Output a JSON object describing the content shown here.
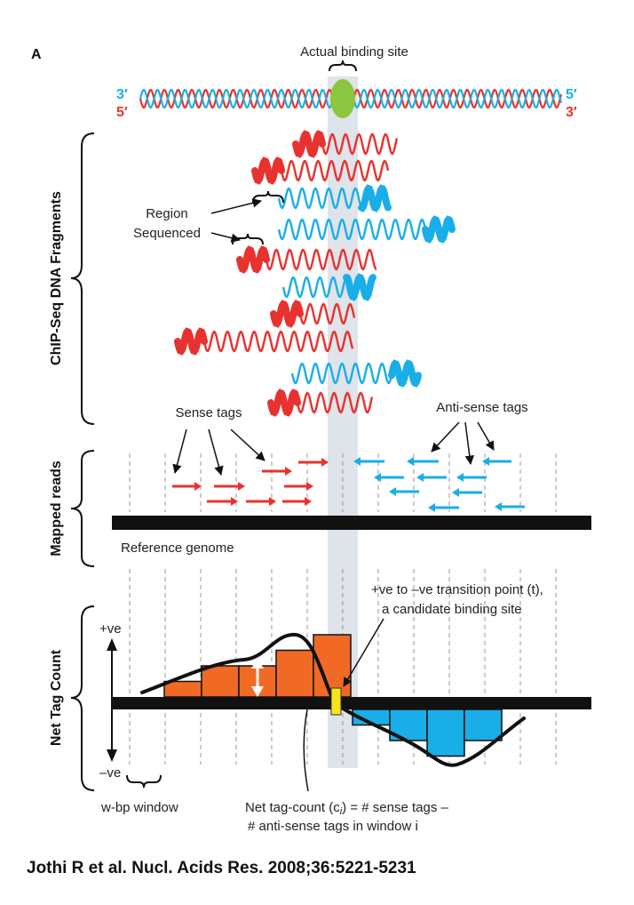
{
  "panel_label": "A",
  "binding_site_label": "Actual binding site",
  "strand_labels": {
    "top_left": "3′",
    "bottom_left": "5′",
    "top_right": "5′",
    "bottom_right": "3′"
  },
  "sections": {
    "fragments": "ChIP-Seq DNA Fragments",
    "mapped_reads": "Mapped reads",
    "net_tag_count": "Net Tag Count"
  },
  "labels": {
    "region_sequenced_1": "Region",
    "region_sequenced_2": "Sequenced",
    "sense_tags": "Sense tags",
    "antisense_tags": "Anti-sense tags",
    "reference_genome": "Reference genome",
    "plus_ve": "+ve",
    "minus_ve": "–ve",
    "transition_1": "+ve to –ve transition point (t),",
    "transition_2": "a candidate binding site",
    "window_label": "w-bp window",
    "net_def_1": "Net tag-count (c",
    "net_def_sub": "i",
    "net_def_2": ") = # sense tags –",
    "net_def_3": "# anti-sense tags in window i"
  },
  "net_tag_count": {
    "positive_bins": [
      1,
      2,
      2,
      3,
      4
    ],
    "negative_bins": [
      -1,
      -2,
      -3,
      -2
    ]
  },
  "colors": {
    "sense": "#e8322f",
    "antisense": "#1aaee8",
    "positive_bar": "#f06a26",
    "negative_bar": "#1aaee8",
    "protein": "#8cc63f",
    "transition_marker": "#f7e51a",
    "genome": "#111111",
    "highlight": "#dfe3ea"
  },
  "citation": "Jothi R et al. Nucl. Acids Res. 2008;36:5221-5231"
}
